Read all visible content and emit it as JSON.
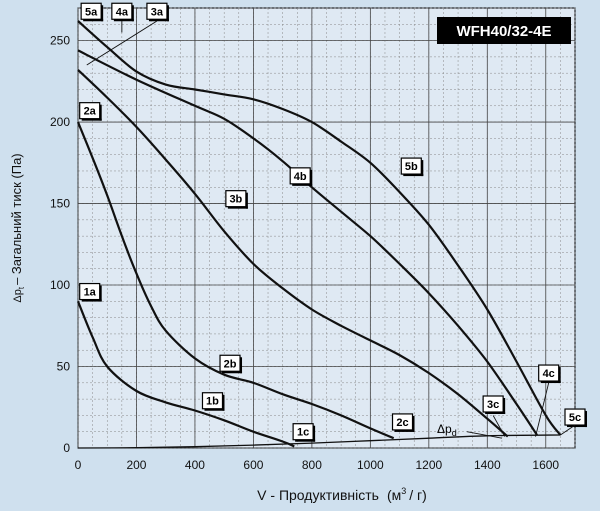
{
  "chart_data": {
    "type": "line",
    "title": "WFH40/32-4E",
    "xlabel": "V - Продуктивність",
    "xunit_pre": "(м",
    "xunit_sup": "3",
    "xunit_post": "/ г)",
    "ylabel_sym": "Δp",
    "ylabel_sub": "t",
    "ylabel": "– Загальний тиск (Па)",
    "xlim": [
      0,
      1700
    ],
    "ylim": [
      0,
      270
    ],
    "xticks": [
      0,
      200,
      400,
      600,
      800,
      1000,
      1200,
      1400,
      1600
    ],
    "yticks": [
      0,
      50,
      100,
      150,
      200,
      250
    ],
    "grid": true,
    "dynamic_pressure_label": "Δp",
    "dynamic_pressure_sub": "d",
    "dynamic_pressure_curve": [
      [
        0,
        0
      ],
      [
        200,
        0.2
      ],
      [
        400,
        0.8
      ],
      [
        600,
        1.8
      ],
      [
        800,
        3
      ],
      [
        1000,
        4.5
      ],
      [
        1200,
        6
      ],
      [
        1400,
        7.5
      ],
      [
        1650,
        8
      ]
    ],
    "series": [
      {
        "name": "1",
        "points": [
          [
            0,
            90
          ],
          [
            50,
            68
          ],
          [
            100,
            50
          ],
          [
            200,
            35
          ],
          [
            300,
            28
          ],
          [
            400,
            23
          ],
          [
            500,
            17
          ],
          [
            600,
            10
          ],
          [
            700,
            4
          ],
          [
            740,
            1
          ]
        ]
      },
      {
        "name": "2",
        "points": [
          [
            0,
            200
          ],
          [
            50,
            178
          ],
          [
            100,
            155
          ],
          [
            150,
            130
          ],
          [
            200,
            107
          ],
          [
            250,
            87
          ],
          [
            300,
            72
          ],
          [
            400,
            55
          ],
          [
            500,
            45
          ],
          [
            600,
            40
          ],
          [
            700,
            33
          ],
          [
            800,
            27
          ],
          [
            900,
            20
          ],
          [
            1000,
            12
          ],
          [
            1080,
            6
          ]
        ]
      },
      {
        "name": "3",
        "points": [
          [
            0,
            232
          ],
          [
            100,
            215
          ],
          [
            200,
            197
          ],
          [
            300,
            177
          ],
          [
            400,
            156
          ],
          [
            500,
            133
          ],
          [
            600,
            113
          ],
          [
            700,
            98
          ],
          [
            800,
            85
          ],
          [
            900,
            75
          ],
          [
            1000,
            66
          ],
          [
            1100,
            57
          ],
          [
            1200,
            46
          ],
          [
            1300,
            33
          ],
          [
            1400,
            18
          ],
          [
            1470,
            7
          ]
        ]
      },
      {
        "name": "4",
        "points": [
          [
            0,
            244
          ],
          [
            200,
            226
          ],
          [
            400,
            210
          ],
          [
            500,
            202
          ],
          [
            600,
            190
          ],
          [
            700,
            176
          ],
          [
            800,
            160
          ],
          [
            900,
            145
          ],
          [
            1000,
            130
          ],
          [
            1100,
            113
          ],
          [
            1200,
            95
          ],
          [
            1300,
            75
          ],
          [
            1400,
            53
          ],
          [
            1500,
            27
          ],
          [
            1570,
            8
          ]
        ]
      },
      {
        "name": "5",
        "points": [
          [
            0,
            262
          ],
          [
            100,
            246
          ],
          [
            200,
            231
          ],
          [
            300,
            223
          ],
          [
            400,
            220
          ],
          [
            500,
            217
          ],
          [
            600,
            214
          ],
          [
            700,
            208
          ],
          [
            800,
            200
          ],
          [
            900,
            188
          ],
          [
            1000,
            175
          ],
          [
            1100,
            157
          ],
          [
            1200,
            137
          ],
          [
            1300,
            112
          ],
          [
            1400,
            85
          ],
          [
            1500,
            53
          ],
          [
            1600,
            20
          ],
          [
            1650,
            8
          ]
        ]
      }
    ],
    "curve_labels": [
      {
        "text": "5a",
        "x": 45,
        "y": 268
      },
      {
        "text": "4a",
        "x": 150,
        "y": 268
      },
      {
        "text": "3a",
        "x": 270,
        "y": 268
      },
      {
        "text": "2a",
        "x": 40,
        "y": 207
      },
      {
        "text": "1a",
        "x": 40,
        "y": 96
      },
      {
        "text": "1b",
        "x": 460,
        "y": 29
      },
      {
        "text": "1c",
        "x": 770,
        "y": 10
      },
      {
        "text": "2b",
        "x": 520,
        "y": 52
      },
      {
        "text": "2c",
        "x": 1110,
        "y": 16
      },
      {
        "text": "3b",
        "x": 540,
        "y": 153
      },
      {
        "text": "3c",
        "x": 1420,
        "y": 27
      },
      {
        "text": "4b",
        "x": 760,
        "y": 167
      },
      {
        "text": "4c",
        "x": 1610,
        "y": 46
      },
      {
        "text": "5b",
        "x": 1140,
        "y": 173
      },
      {
        "text": "5c",
        "x": 1700,
        "y": 19
      }
    ]
  }
}
